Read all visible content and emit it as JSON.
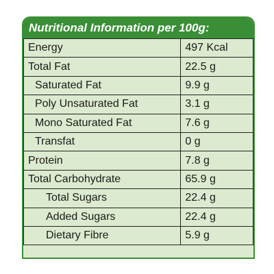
{
  "header": {
    "title": "Nutritional Information per 100g:"
  },
  "rows": [
    {
      "name": "Energy",
      "value": "497 Kcal"
    },
    {
      "name": "Total Fat",
      "value": "22.5 g"
    },
    {
      "name": "Saturated Fat",
      "value": "9.9 g"
    },
    {
      "name": "Poly Unsaturated Fat",
      "value": "3.1 g"
    },
    {
      "name": "Mono Saturated Fat",
      "value": "7.6 g"
    },
    {
      "name": "Transfat",
      "value": "0 g"
    },
    {
      "name": "Protein",
      "value": "7.8 g"
    },
    {
      "name": "Total Carbohydrate",
      "value": "65.9 g"
    },
    {
      "name": "Total Sugars",
      "value": "22.4 g"
    },
    {
      "name": "Added Sugars",
      "value": "22.4 g"
    },
    {
      "name": "Dietary Fibre",
      "value": "5.9 g"
    }
  ],
  "colors": {
    "accent": "#3a8f36",
    "background": "#dcebcf"
  }
}
